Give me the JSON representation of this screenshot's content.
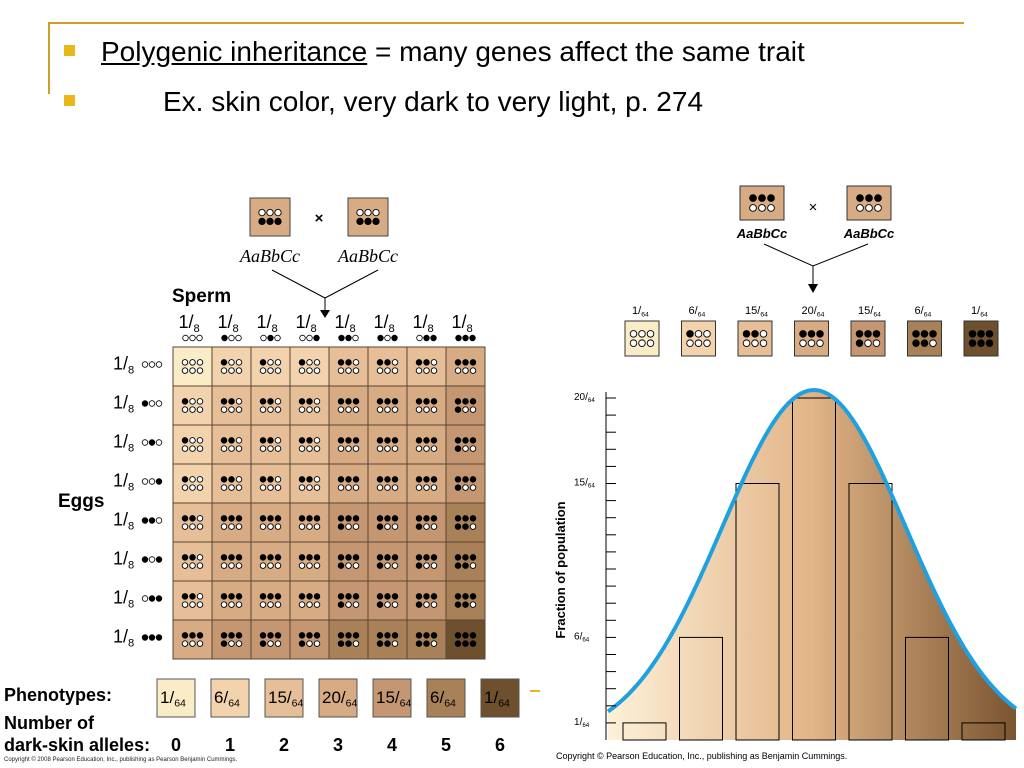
{
  "bullets": [
    {
      "term": "Polygenic inheritance",
      "rest": " = many genes affect the same trait"
    },
    {
      "text": "Ex. skin color, very dark to very light, p. 274"
    }
  ],
  "left": {
    "parent1": "AaBbCc",
    "parent2": "AaBbCc",
    "cross": "×",
    "sperm_label": "Sperm",
    "eggs_label": "Eggs",
    "fraction_num": "1",
    "fraction_den": "8",
    "gametes": [
      [
        0,
        0,
        0
      ],
      [
        1,
        0,
        0
      ],
      [
        0,
        1,
        0
      ],
      [
        0,
        0,
        1
      ],
      [
        1,
        1,
        0
      ],
      [
        1,
        0,
        1
      ],
      [
        0,
        1,
        1
      ],
      [
        1,
        1,
        1
      ]
    ],
    "phenotypes_label": "Phenotypes:",
    "alleles_label_1": "Number of",
    "alleles_label_2": "dark-skin alleles:",
    "phenotypes": [
      {
        "num": "1",
        "den": "64",
        "alleles": "0",
        "color": "#fbecc8"
      },
      {
        "num": "6",
        "den": "64",
        "alleles": "1",
        "color": "#f2d3ad"
      },
      {
        "num": "15",
        "den": "64",
        "alleles": "2",
        "color": "#e6bf98"
      },
      {
        "num": "20",
        "den": "64",
        "alleles": "3",
        "color": "#d7ab84"
      },
      {
        "num": "15",
        "den": "64",
        "alleles": "4",
        "color": "#c49772"
      },
      {
        "num": "6",
        "den": "64",
        "alleles": "5",
        "color": "#a88158"
      },
      {
        "num": "1",
        "den": "64",
        "alleles": "6",
        "color": "#6e4f2e"
      }
    ],
    "copyright": "Copyright © 2008 Pearson Education, Inc., publishing as Pearson Benjamin Cummings."
  },
  "right": {
    "parent1": "AaBbCc",
    "parent2": "AaBbCc",
    "cross": "×",
    "y_axis_label": "Fraction of population",
    "y_ticks": [
      {
        "num": "20",
        "den": "64",
        "value": 20
      },
      {
        "num": "15",
        "den": "64",
        "value": 15
      },
      {
        "num": "6",
        "den": "64",
        "value": 6
      },
      {
        "num": "1",
        "den": "64",
        "value": 1
      }
    ],
    "copyright": "Copyright © Pearson Education, Inc., publishing as Benjamin Cummings."
  },
  "colors": {
    "bullet": "#e8b81a",
    "rule": "#c9a227",
    "curve": "#1fa0e0",
    "cell_levels": [
      "#fbecc8",
      "#f2d3ad",
      "#e6bf98",
      "#d7ab84",
      "#c49772",
      "#a88158",
      "#6e4f2e"
    ]
  },
  "chart_data": {
    "type": "bar",
    "categories": [
      "0",
      "1",
      "2",
      "3",
      "4",
      "5",
      "6"
    ],
    "values": [
      1,
      6,
      15,
      20,
      15,
      6,
      1
    ],
    "value_labels": [
      "1/64",
      "6/64",
      "15/64",
      "20/64",
      "15/64",
      "6/64",
      "1/64"
    ],
    "ylabel": "Fraction of population",
    "ylim": [
      0,
      21
    ],
    "grid": false
  }
}
